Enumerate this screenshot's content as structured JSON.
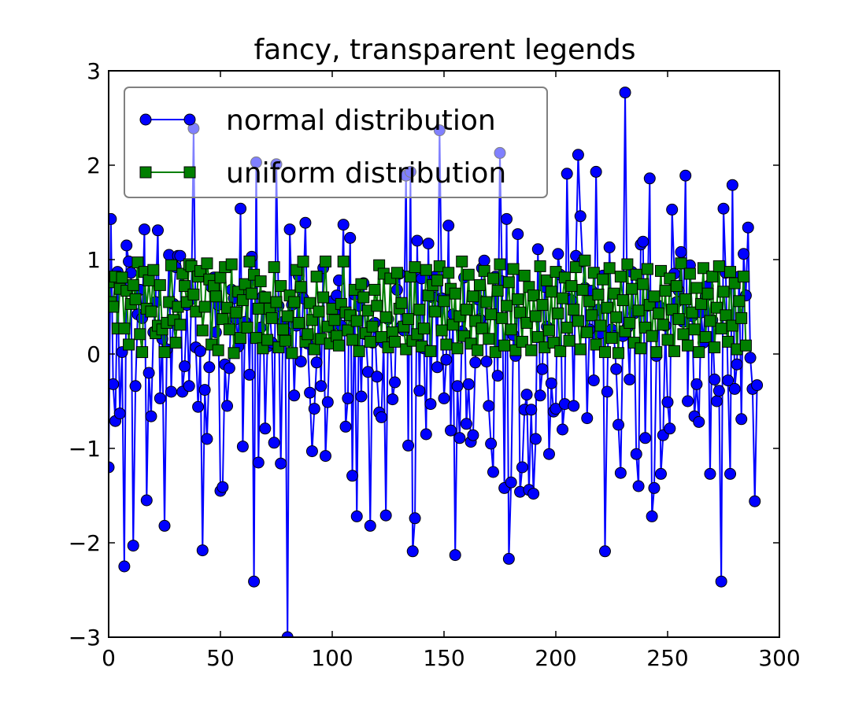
{
  "chart_data": {
    "type": "line",
    "title": "fancy, transparent legends",
    "xlabel": "",
    "ylabel": "",
    "xlim": [
      0,
      300
    ],
    "ylim": [
      -3,
      3
    ],
    "x_ticks": [
      0,
      50,
      100,
      150,
      200,
      250,
      300
    ],
    "y_ticks": [
      -3,
      -2,
      -1,
      0,
      1,
      2,
      3
    ],
    "x_tick_labels": [
      "0",
      "50",
      "100",
      "150",
      "200",
      "250",
      "300"
    ],
    "y_tick_labels": [
      "−3",
      "−2",
      "−1",
      "0",
      "1",
      "2",
      "3"
    ],
    "grid": false,
    "legend": {
      "placement": "top-left",
      "transparent": true,
      "entries": [
        {
          "label": "normal distribution",
          "marker": "circle",
          "color": "#0000ff"
        },
        {
          "label": "uniform distribution",
          "marker": "square",
          "color": "#007f00"
        }
      ]
    },
    "series": [
      {
        "name": "normal distribution",
        "color": "#0000ff",
        "marker": "circle",
        "x_start": 0,
        "x_step": 1,
        "values": [
          -1.2,
          1.43,
          -0.32,
          -0.71,
          0.87,
          -0.63,
          0.02,
          -2.25,
          1.15,
          0.98,
          0.86,
          -2.03,
          -0.34,
          0.42,
          0.68,
          0.38,
          1.32,
          -1.55,
          -0.2,
          -0.66,
          0.23,
          0.55,
          1.31,
          -0.47,
          0.16,
          -1.82,
          0.05,
          1.05,
          -0.4,
          0.53,
          0.92,
          1.04,
          1.04,
          -0.4,
          -0.13,
          0.52,
          -0.34,
          0.58,
          2.39,
          0.07,
          -0.56,
          0.03,
          -2.08,
          -0.38,
          -0.9,
          -0.14,
          0.71,
          0.81,
          0.23,
          0.52,
          -1.45,
          -1.41,
          -0.11,
          -0.55,
          -0.15,
          0.68,
          0.59,
          0.37,
          0.08,
          1.54,
          -0.98,
          0.34,
          0.64,
          -0.22,
          1.03,
          -2.41,
          2.03,
          -1.15,
          0.28,
          0.61,
          -0.79,
          0.08,
          0.49,
          0.12,
          -0.94,
          2.01,
          0.51,
          -1.16,
          0.34,
          0.24,
          -3.0,
          1.32,
          0.52,
          -0.44,
          0.3,
          0.83,
          -0.08,
          0.59,
          1.39,
          0.11,
          -0.41,
          -1.03,
          -0.58,
          -0.09,
          0.45,
          -0.34,
          0.91,
          -1.08,
          -0.51,
          0.29,
          0.56,
          0.44,
          0.62,
          0.78,
          0.3,
          1.37,
          -0.77,
          -0.47,
          1.23,
          -1.29,
          0.63,
          -1.72,
          0.51,
          -0.45,
          0.75,
          0.21,
          -0.19,
          -1.82,
          0.12,
          0.33,
          -0.24,
          -0.62,
          -0.67,
          0.12,
          -1.71,
          0.37,
          0.14,
          -0.48,
          -0.3,
          0.68,
          0.85,
          0.29,
          0.25,
          1.89,
          -0.97,
          1.93,
          -2.09,
          -1.74,
          1.2,
          -0.39,
          0.8,
          0.06,
          -0.85,
          1.17,
          -0.53,
          0.6,
          0.82,
          -0.14,
          2.37,
          0.59,
          -0.47,
          -0.06,
          1.36,
          -0.81,
          0.42,
          -2.13,
          -0.34,
          -0.89,
          0.24,
          0.81,
          -0.74,
          -0.32,
          -0.93,
          -0.86,
          -0.09,
          0.58,
          0.37,
          0.91,
          0.99,
          -0.08,
          -0.55,
          -0.95,
          -1.25,
          0.82,
          -0.23,
          2.13,
          0.77,
          -1.42,
          1.43,
          -2.17,
          -1.36,
          0.2,
          -0.02,
          1.27,
          -1.46,
          -1.2,
          -0.59,
          -0.43,
          -1.44,
          -0.59,
          -1.48,
          -0.9,
          1.11,
          -0.44,
          -0.16,
          0.71,
          0.29,
          -1.06,
          -0.31,
          -0.61,
          -0.58,
          1.06,
          0.84,
          -0.8,
          -0.53,
          1.91,
          0.58,
          0.57,
          -0.55,
          1.04,
          2.11,
          1.46,
          0.98,
          0.7,
          -0.68,
          0.26,
          0.67,
          -0.28,
          1.93,
          0.47,
          0.22,
          0.83,
          -2.09,
          -0.4,
          1.13,
          0.26,
          0.19,
          -0.16,
          -0.75,
          -1.26,
          0.19,
          2.77,
          0.28,
          -0.27,
          0.87,
          0.43,
          -1.06,
          -1.4,
          1.16,
          1.19,
          -0.89,
          0.51,
          1.86,
          -1.72,
          -1.42,
          -0.02,
          0.51,
          -1.27,
          -0.86,
          0.3,
          -0.51,
          -0.79,
          1.53,
          0.85,
          0.55,
          0.67,
          1.08,
          0.34,
          1.89,
          -0.5,
          0.94,
          0.4,
          -0.66,
          -0.32,
          -0.72,
          0.44,
          0.12,
          0.61,
          0.72,
          -1.27,
          0.36,
          -0.27,
          -0.5,
          -0.39,
          -2.41,
          1.54,
          0.86,
          -0.28,
          -1.27,
          1.79,
          -0.37,
          -0.11,
          0.82,
          -0.69,
          1.06,
          0.62,
          1.34,
          -0.04,
          -0.37,
          -1.56,
          -0.33
        ]
      },
      {
        "name": "uniform distribution",
        "color": "#007f00",
        "marker": "square",
        "x_start": 0,
        "x_step": 1,
        "values": [
          0.76,
          0.55,
          0.5,
          0.82,
          0.27,
          0.69,
          0.81,
          0.27,
          0.67,
          0.1,
          0.53,
          0.73,
          0.58,
          0.97,
          0.21,
          0.02,
          0.87,
          0.48,
          0.78,
          0.45,
          0.89,
          0.22,
          0.3,
          0.73,
          0.26,
          0.02,
          0.33,
          0.55,
          0.94,
          0.36,
          0.12,
          0.5,
          0.31,
          0.85,
          0.72,
          0.55,
          0.95,
          0.93,
          0.63,
          0.45,
          0.82,
          0.88,
          0.25,
          0.5,
          0.96,
          0.79,
          0.1,
          0.72,
          0.61,
          0.04,
          0.81,
          0.37,
          0.92,
          0.49,
          0.26,
          0.95,
          0.01,
          0.44,
          0.66,
          0.17,
          0.57,
          0.74,
          0.28,
          0.98,
          0.64,
          0.84,
          0.17,
          0.48,
          0.77,
          0.06,
          0.6,
          0.15,
          0.48,
          0.38,
          0.92,
          0.55,
          0.07,
          0.72,
          0.26,
          0.14,
          0.4,
          0.62,
          0.01,
          0.55,
          0.89,
          0.33,
          0.71,
          0.98,
          0.13,
          0.21,
          0.54,
          0.36,
          0.05,
          0.82,
          0.45,
          0.16,
          0.6,
          0.98,
          0.29,
          0.11,
          0.48,
          0.36,
          0.19,
          0.09,
          0.53,
          0.98,
          0.44,
          0.25,
          0.41,
          0.15,
          0.68,
          0.35,
          0.03,
          0.74,
          0.6,
          0.22,
          0.46,
          0.13,
          0.29,
          0.68,
          0.51,
          0.94,
          0.18,
          0.85,
          0.39,
          0.07,
          0.8,
          0.23,
          0.13,
          0.86,
          0.48,
          0.54,
          0.29,
          0.05,
          0.37,
          0.82,
          0.14,
          0.92,
          0.21,
          0.47,
          0.08,
          0.27,
          0.89,
          0.62,
          0.03,
          0.73,
          0.45,
          0.78,
          0.93,
          0.25,
          0.56,
          0.1,
          0.86,
          0.69,
          0.31,
          0.64,
          0.06,
          0.4,
          0.98,
          0.19,
          0.47,
          0.84,
          0.11,
          0.61,
          0.35,
          0.04,
          0.73,
          0.27,
          0.88,
          0.55,
          0.16,
          0.42,
          0.8,
          0.02,
          0.67,
          0.95,
          0.38,
          0.09,
          0.51,
          0.76,
          0.26,
          0.9,
          0.04,
          0.58,
          0.44,
          0.13,
          0.83,
          0.33,
          0.71,
          0.04,
          0.62,
          0.4,
          0.18,
          0.93,
          0.52,
          0.07,
          0.78,
          0.25,
          0.66,
          0.12,
          0.87,
          0.43,
          0.03,
          0.59,
          0.81,
          0.28,
          0.14,
          0.72,
          0.47,
          0.92,
          0.35,
          0.05,
          0.68,
          0.99,
          0.23,
          0.56,
          0.41,
          0.86,
          0.1,
          0.63,
          0.3,
          0.79,
          0.02,
          0.49,
          0.91,
          0.17,
          0.64,
          0.39,
          0.01,
          0.82,
          0.57,
          0.24,
          0.95,
          0.33,
          0.69,
          0.12,
          0.84,
          0.46,
          0.06,
          0.74,
          0.28,
          0.9,
          0.52,
          0.19,
          0.61,
          0.02,
          0.43,
          0.88,
          0.31,
          0.67,
          0.15,
          0.8,
          0.47,
          0.03,
          0.72,
          0.37,
          0.96,
          0.21,
          0.58,
          0.09,
          0.85,
          0.44,
          0.26,
          0.7,
          0.02,
          0.53,
          0.91,
          0.18,
          0.64,
          0.35,
          0.82,
          0.07,
          0.49,
          0.93,
          0.27,
          0.66,
          0.41,
          0.13,
          0.87,
          0.3,
          0.75,
          0.05,
          0.56,
          0.38,
          0.82,
          0.09
        ]
      }
    ]
  }
}
